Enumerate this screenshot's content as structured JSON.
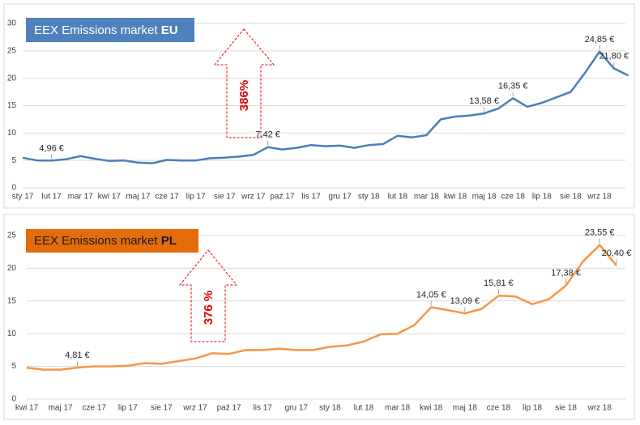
{
  "chart_data": [
    {
      "type": "line",
      "title": [
        "EEX Emissions market",
        "EU"
      ],
      "arrow_label": "386%",
      "categories": [
        "sty 17",
        null,
        "lut 17",
        null,
        "mar 17",
        null,
        "kwi 17",
        null,
        "maj 17",
        null,
        "cze 17",
        null,
        "lip 17",
        null,
        "sie 17",
        null,
        "wrz 17",
        null,
        "paź 17",
        null,
        "lis 17",
        null,
        "gru 17",
        null,
        "sty 18",
        null,
        "lut 18",
        null,
        "mar 18",
        null,
        "kwi 18",
        null,
        "maj 18",
        null,
        "cze 18",
        null,
        "lip 18",
        null,
        "sie 18",
        null,
        "wrz 18",
        null,
        null
      ],
      "values": [
        5.5,
        5.0,
        4.96,
        5.2,
        5.8,
        5.3,
        4.9,
        5.0,
        4.6,
        4.5,
        5.1,
        5.0,
        5.0,
        5.4,
        5.5,
        5.7,
        6.0,
        7.42,
        7.0,
        7.3,
        7.8,
        7.6,
        7.7,
        7.3,
        7.8,
        8.0,
        9.5,
        9.2,
        9.6,
        12.5,
        13.0,
        13.2,
        13.58,
        14.5,
        16.35,
        14.8,
        15.5,
        16.5,
        17.5,
        21.0,
        24.85,
        21.8,
        20.5
      ],
      "value_labels": [
        null,
        null,
        "4,96 €",
        null,
        null,
        null,
        null,
        null,
        null,
        null,
        null,
        null,
        null,
        null,
        null,
        null,
        null,
        "7,42 €",
        null,
        null,
        null,
        null,
        null,
        null,
        null,
        null,
        null,
        null,
        null,
        null,
        null,
        null,
        "13,58 €",
        null,
        "16,35 €",
        null,
        null,
        null,
        null,
        null,
        "24,85 €",
        "21,80 €",
        null
      ],
      "color": "#4a7ebb",
      "title_color": "#4f81bd",
      "ylim": [
        0,
        30
      ],
      "yticks": [
        0,
        5,
        10,
        15,
        20,
        25,
        30
      ],
      "grid": true
    },
    {
      "type": "line",
      "title": [
        "EEX Emissions market",
        "PL"
      ],
      "arrow_label": "376 %",
      "categories": [
        "kwi 17",
        null,
        "maj 17",
        null,
        "cze 17",
        null,
        "lip 17",
        null,
        "sie 17",
        null,
        "wrz 17",
        null,
        "paź 17",
        null,
        "lis 17",
        null,
        "gru 17",
        null,
        "sty 18",
        null,
        "lut 18",
        null,
        "mar 18",
        null,
        "kwi 18",
        null,
        "maj 18",
        null,
        "cze 18",
        null,
        "lip 18",
        null,
        "sie 18",
        null,
        "wrz 18",
        null
      ],
      "values": [
        4.8,
        4.5,
        4.5,
        4.81,
        5.0,
        5.0,
        5.1,
        5.5,
        5.4,
        5.8,
        6.2,
        7.0,
        6.9,
        7.5,
        7.5,
        7.7,
        7.5,
        7.5,
        8.0,
        8.2,
        8.8,
        9.9,
        10.0,
        11.3,
        14.05,
        13.6,
        13.09,
        13.8,
        15.81,
        15.7,
        14.5,
        15.3,
        17.38,
        21.0,
        23.55,
        20.4
      ],
      "value_labels": [
        null,
        null,
        null,
        "4,81 €",
        null,
        null,
        null,
        null,
        null,
        null,
        null,
        null,
        null,
        null,
        null,
        null,
        null,
        null,
        null,
        null,
        null,
        null,
        null,
        null,
        "14,05 €",
        null,
        "13,09 €",
        null,
        "15,81 €",
        null,
        null,
        null,
        "17,38 €",
        null,
        "23,55 €",
        "20,40 €"
      ],
      "color": "#f79646",
      "title_color": "#e46c0a",
      "ylim": [
        0,
        25
      ],
      "yticks": [
        0,
        5,
        10,
        15,
        20,
        25
      ],
      "grid": true
    }
  ]
}
